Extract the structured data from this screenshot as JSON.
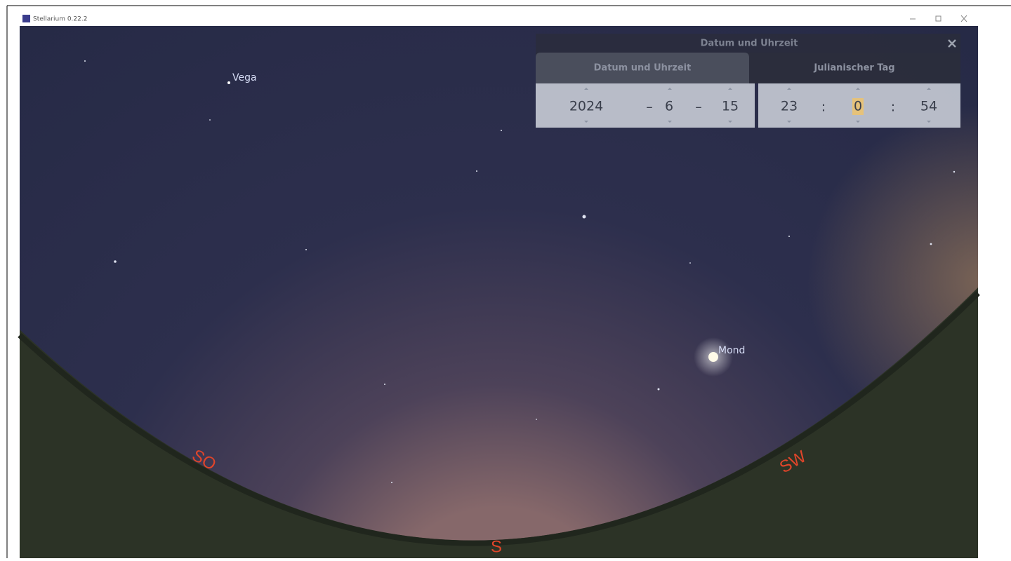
{
  "window": {
    "title": "Stellarium 0.22.2"
  },
  "sky_labels": {
    "vega": "Vega",
    "moon": "Mond"
  },
  "cardinals": {
    "southeast": "SO",
    "south": "S",
    "southwest": "SW"
  },
  "dialog": {
    "title": "Datum und Uhrzeit",
    "tabs": [
      "Datum und Uhrzeit",
      "Julianischer Tag"
    ],
    "date": {
      "year": 2024,
      "month": 6,
      "day": 15,
      "separator": "–"
    },
    "time": {
      "hour": 23,
      "minute": 0,
      "second": 54,
      "separator": ":"
    }
  }
}
